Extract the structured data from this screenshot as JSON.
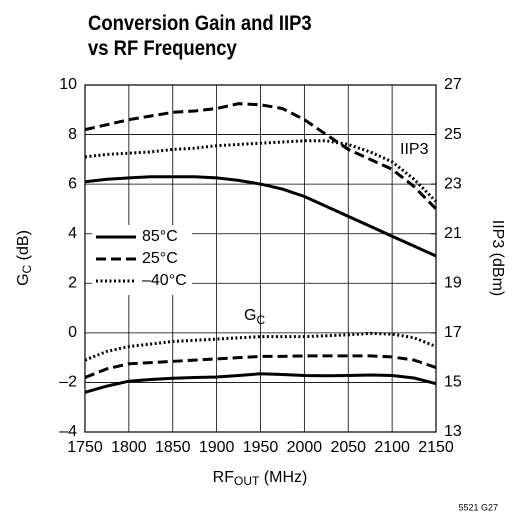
{
  "chart_data": {
    "type": "line",
    "title": [
      "Conversion Gain and IIP3",
      "vs RF Frequency"
    ],
    "xlabel": [
      "RF",
      "OUT",
      " (MHz)"
    ],
    "ylabel": [
      "G",
      "C",
      " (dB)"
    ],
    "y2label": "IIP3 (dBm)",
    "annotations": {
      "iip3": "IIP3",
      "gain": [
        "G",
        "C"
      ]
    },
    "footnote": "5521 G27",
    "x": [
      1750,
      1775,
      1800,
      1825,
      1850,
      1875,
      1900,
      1925,
      1950,
      1975,
      2000,
      2025,
      2050,
      2075,
      2100,
      2125,
      2150
    ],
    "xlim": [
      1750,
      2150
    ],
    "xticks": [
      1750,
      1800,
      1850,
      1900,
      1950,
      2000,
      2050,
      2100,
      2150
    ],
    "ylim": [
      -4,
      10
    ],
    "yticks": [
      {
        "value": -4,
        "label": "–4"
      },
      {
        "value": -2,
        "label": "–2"
      },
      0,
      2,
      4,
      6,
      8,
      10
    ],
    "y2lim": [
      13,
      27
    ],
    "y2ticks": [
      13,
      15,
      17,
      19,
      21,
      23,
      25,
      27
    ],
    "grid": true,
    "series": [
      {
        "name": "85°C",
        "color": "#000000",
        "style": "solid",
        "axis": "y",
        "values": [
          -2.4,
          -2.15,
          -1.95,
          -1.88,
          -1.83,
          -1.8,
          -1.78,
          -1.72,
          -1.65,
          -1.68,
          -1.72,
          -1.73,
          -1.72,
          -1.7,
          -1.72,
          -1.82,
          -2.05
        ]
      },
      {
        "name": "25°C",
        "color": "#000000",
        "style": "dashed",
        "axis": "y",
        "values": [
          -1.8,
          -1.45,
          -1.25,
          -1.2,
          -1.15,
          -1.1,
          -1.05,
          -1.0,
          -0.95,
          -0.95,
          -0.93,
          -0.93,
          -0.93,
          -0.93,
          -0.97,
          -1.1,
          -1.4
        ]
      },
      {
        "name": "–40°C",
        "color": "#000000",
        "style": "dotted",
        "axis": "y",
        "values": [
          -1.1,
          -0.75,
          -0.55,
          -0.45,
          -0.35,
          -0.3,
          -0.25,
          -0.2,
          -0.15,
          -0.15,
          -0.15,
          -0.12,
          -0.08,
          -0.02,
          -0.05,
          -0.2,
          -0.55
        ]
      },
      {
        "color": "#000000",
        "style": "solid",
        "axis": "y2",
        "values": [
          23.1,
          23.2,
          23.25,
          23.3,
          23.3,
          23.3,
          23.25,
          23.15,
          23.0,
          22.8,
          22.5,
          22.1,
          21.7,
          21.3,
          20.9,
          20.5,
          20.1
        ]
      },
      {
        "color": "#000000",
        "style": "dashed",
        "axis": "y2",
        "values": [
          25.2,
          25.4,
          25.6,
          25.75,
          25.9,
          25.95,
          26.05,
          26.25,
          26.2,
          26.05,
          25.6,
          25.0,
          24.4,
          24.0,
          23.6,
          22.9,
          22.0
        ]
      },
      {
        "color": "#000000",
        "style": "dotted",
        "axis": "y2",
        "values": [
          24.1,
          24.2,
          24.25,
          24.3,
          24.4,
          24.45,
          24.55,
          24.6,
          24.65,
          24.7,
          24.75,
          24.75,
          24.6,
          24.3,
          23.9,
          23.2,
          22.3
        ]
      }
    ]
  }
}
